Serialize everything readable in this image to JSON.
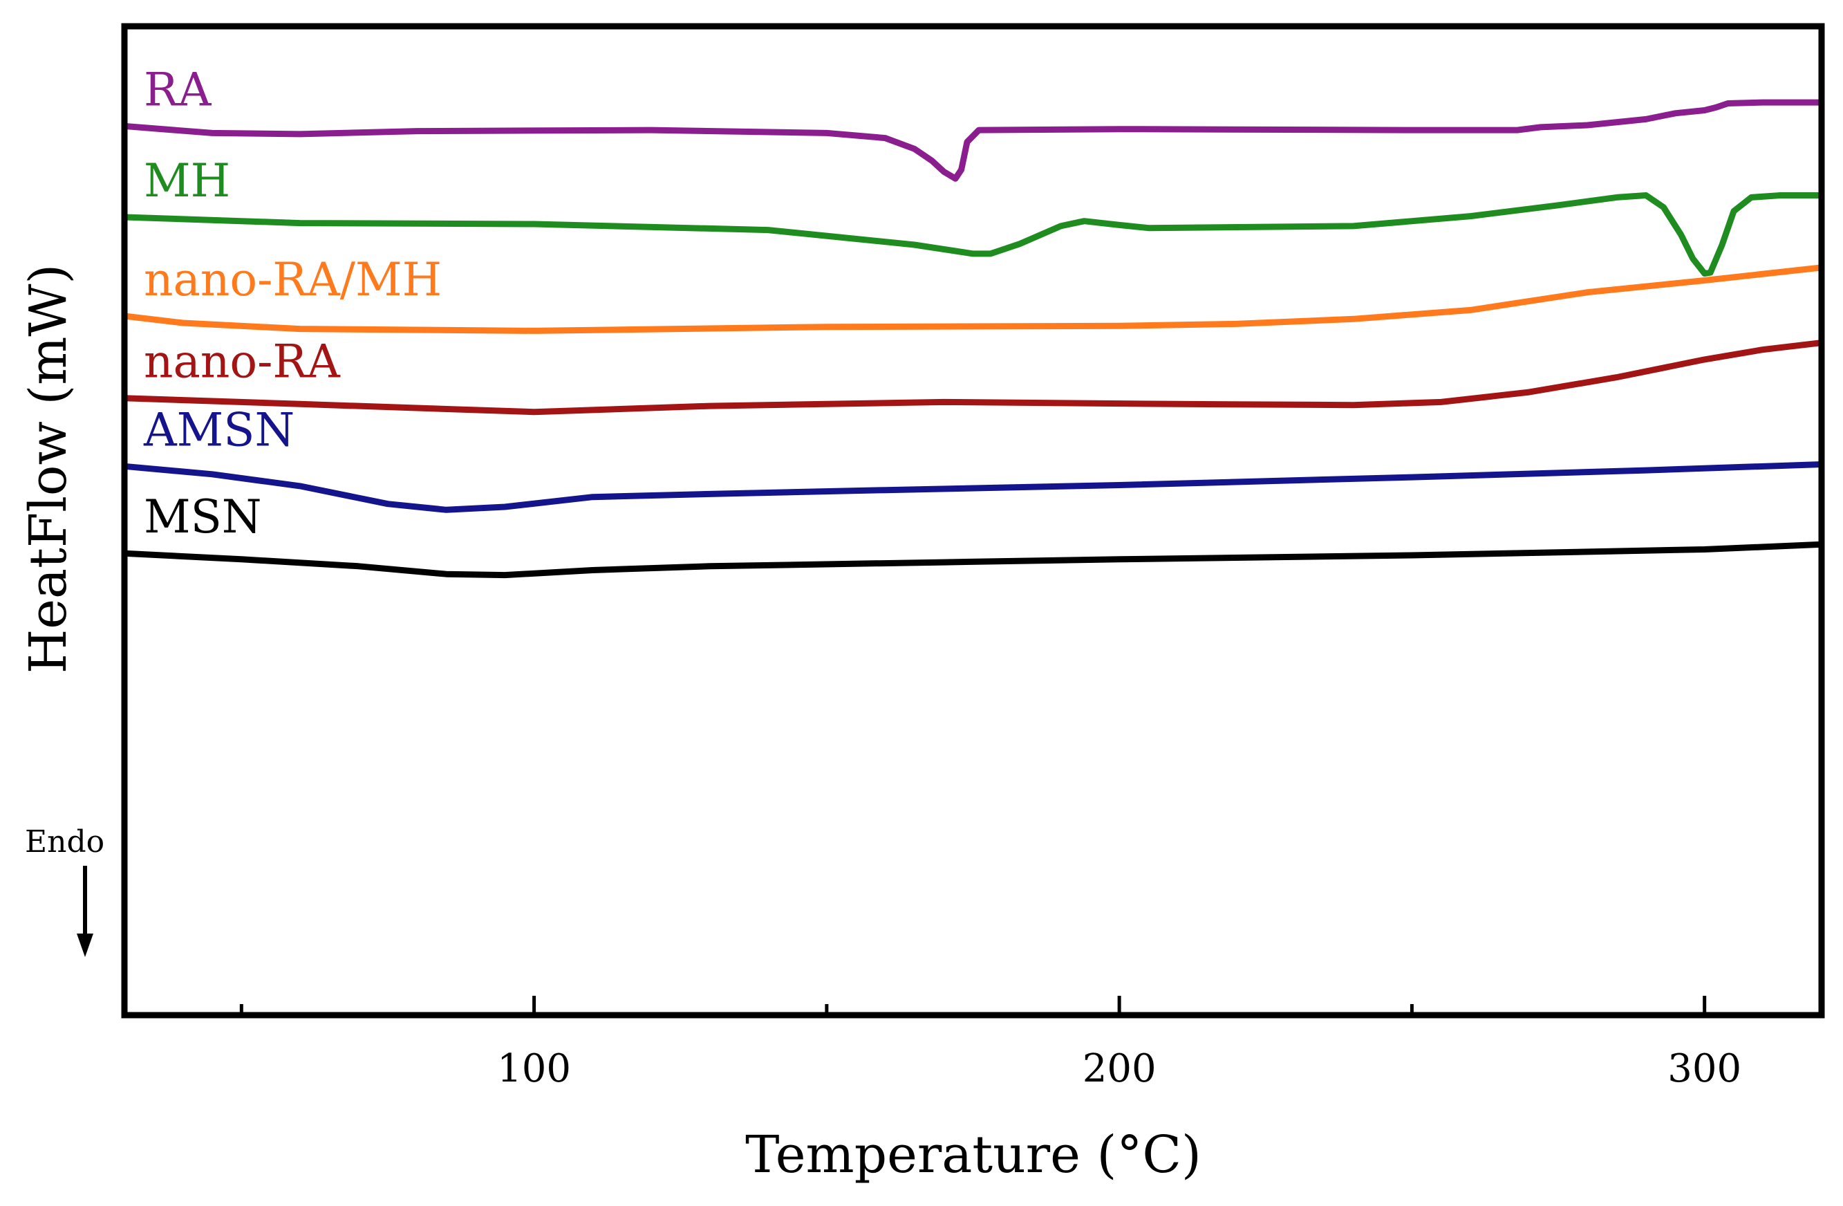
{
  "chart_data": {
    "type": "line",
    "title": "",
    "xlabel": "Temperature (°C)",
    "ylabel": "HeatFlow (mW)",
    "xlim": [
      30,
      320
    ],
    "ylim": [
      0,
      100
    ],
    "xticks_major": [
      100,
      200,
      300
    ],
    "xticks_minor": [
      50,
      150,
      250
    ],
    "yticks": [],
    "grid": false,
    "annotation": {
      "text": "Endo",
      "arrow": "down"
    },
    "series": [
      {
        "name": "RA",
        "color": "#8B1E8E",
        "points": [
          [
            30,
            89.9
          ],
          [
            45,
            89.2
          ],
          [
            60,
            89.1
          ],
          [
            80,
            89.4
          ],
          [
            120,
            89.5
          ],
          [
            150,
            89.2
          ],
          [
            160,
            88.7
          ],
          [
            165,
            87.6
          ],
          [
            168,
            86.4
          ],
          [
            170,
            85.3
          ],
          [
            172,
            84.6
          ],
          [
            173,
            85.5
          ],
          [
            174,
            88.3
          ],
          [
            176,
            89.5
          ],
          [
            200,
            89.6
          ],
          [
            250,
            89.5
          ],
          [
            268,
            89.5
          ],
          [
            272,
            89.8
          ],
          [
            280,
            90.0
          ],
          [
            290,
            90.6
          ],
          [
            295,
            91.2
          ],
          [
            300,
            91.5
          ],
          [
            302,
            91.8
          ],
          [
            304,
            92.2
          ],
          [
            310,
            92.3
          ],
          [
            320,
            92.3
          ]
        ]
      },
      {
        "name": "MH",
        "color": "#1E8C1E",
        "points": [
          [
            30,
            80.7
          ],
          [
            60,
            80.1
          ],
          [
            100,
            80.0
          ],
          [
            140,
            79.4
          ],
          [
            165,
            77.9
          ],
          [
            175,
            77.0
          ],
          [
            178,
            77.0
          ],
          [
            183,
            78.0
          ],
          [
            190,
            79.8
          ],
          [
            194,
            80.3
          ],
          [
            200,
            79.9
          ],
          [
            205,
            79.6
          ],
          [
            240,
            79.8
          ],
          [
            260,
            80.8
          ],
          [
            275,
            81.9
          ],
          [
            285,
            82.7
          ],
          [
            290,
            82.9
          ],
          [
            293,
            81.7
          ],
          [
            296,
            78.9
          ],
          [
            298,
            76.5
          ],
          [
            300,
            75.0
          ],
          [
            301,
            75.1
          ],
          [
            303,
            77.9
          ],
          [
            305,
            81.3
          ],
          [
            308,
            82.7
          ],
          [
            313,
            82.9
          ],
          [
            320,
            82.9
          ]
        ]
      },
      {
        "name": "nano-RA/MH",
        "color": "#FF7A1C",
        "points": [
          [
            30,
            70.7
          ],
          [
            40,
            70.0
          ],
          [
            60,
            69.4
          ],
          [
            100,
            69.2
          ],
          [
            150,
            69.6
          ],
          [
            200,
            69.7
          ],
          [
            220,
            69.9
          ],
          [
            240,
            70.4
          ],
          [
            260,
            71.3
          ],
          [
            280,
            73.1
          ],
          [
            300,
            74.3
          ],
          [
            320,
            75.6
          ]
        ]
      },
      {
        "name": "nano-RA",
        "color": "#A31515",
        "points": [
          [
            30,
            62.4
          ],
          [
            60,
            61.8
          ],
          [
            80,
            61.4
          ],
          [
            100,
            61.0
          ],
          [
            130,
            61.6
          ],
          [
            170,
            62.0
          ],
          [
            210,
            61.8
          ],
          [
            240,
            61.7
          ],
          [
            255,
            62.0
          ],
          [
            270,
            63.0
          ],
          [
            285,
            64.5
          ],
          [
            300,
            66.3
          ],
          [
            310,
            67.3
          ],
          [
            320,
            68.0
          ]
        ]
      },
      {
        "name": "AMSN",
        "color": "#14148C",
        "points": [
          [
            30,
            55.5
          ],
          [
            45,
            54.7
          ],
          [
            60,
            53.5
          ],
          [
            75,
            51.7
          ],
          [
            85,
            51.1
          ],
          [
            95,
            51.4
          ],
          [
            110,
            52.4
          ],
          [
            130,
            52.7
          ],
          [
            160,
            53.1
          ],
          [
            200,
            53.6
          ],
          [
            250,
            54.4
          ],
          [
            290,
            55.1
          ],
          [
            320,
            55.7
          ]
        ]
      },
      {
        "name": "MSN",
        "color": "#000000",
        "points": [
          [
            30,
            46.7
          ],
          [
            50,
            46.1
          ],
          [
            70,
            45.4
          ],
          [
            85,
            44.6
          ],
          [
            95,
            44.5
          ],
          [
            110,
            45.0
          ],
          [
            130,
            45.4
          ],
          [
            170,
            45.8
          ],
          [
            200,
            46.1
          ],
          [
            250,
            46.5
          ],
          [
            300,
            47.1
          ],
          [
            320,
            47.6
          ]
        ]
      }
    ]
  }
}
